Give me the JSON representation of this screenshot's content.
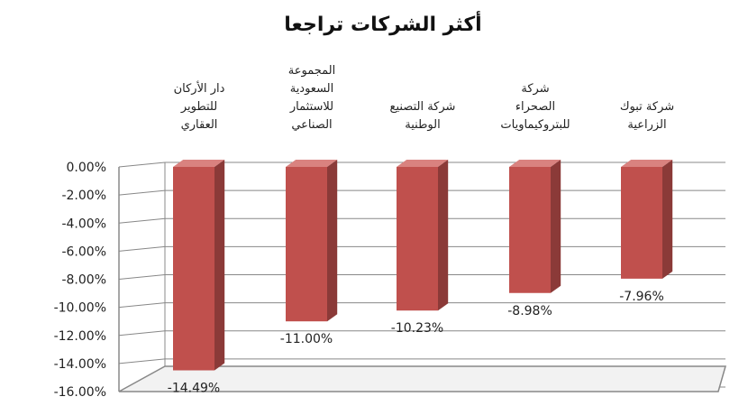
{
  "chart_data": {
    "type": "bar",
    "title": "أكثر الشركات تراجعا",
    "categories": [
      [
        "دار الأركان",
        "للتطوير",
        "العقاري"
      ],
      [
        "المجموعة",
        "السعودية",
        "للاستثمار",
        "الصناعي"
      ],
      [
        "شركة التصنيع",
        "الوطنية"
      ],
      [
        "شركة",
        "الصحراء",
        "للبتروكيماويات"
      ],
      [
        "شركة تبوك",
        "الزراعية"
      ]
    ],
    "values": [
      -14.49,
      -11.0,
      -10.23,
      -8.98,
      -7.96
    ],
    "data_labels": [
      "-14.49%",
      "-11.00%",
      "-10.23%",
      "-8.98%",
      "-7.96%"
    ],
    "yticks": [
      "0.00%",
      "-2.00%",
      "-4.00%",
      "-6.00%",
      "-8.00%",
      "-10.00%",
      "-12.00%",
      "-14.00%",
      "-16.00%"
    ],
    "ylim": [
      -16,
      0
    ],
    "grid": true,
    "colors": {
      "bar_front": "#c0504d",
      "bar_side": "#8b3a38",
      "bar_top": "#d9827f",
      "grid": "#888888"
    }
  }
}
